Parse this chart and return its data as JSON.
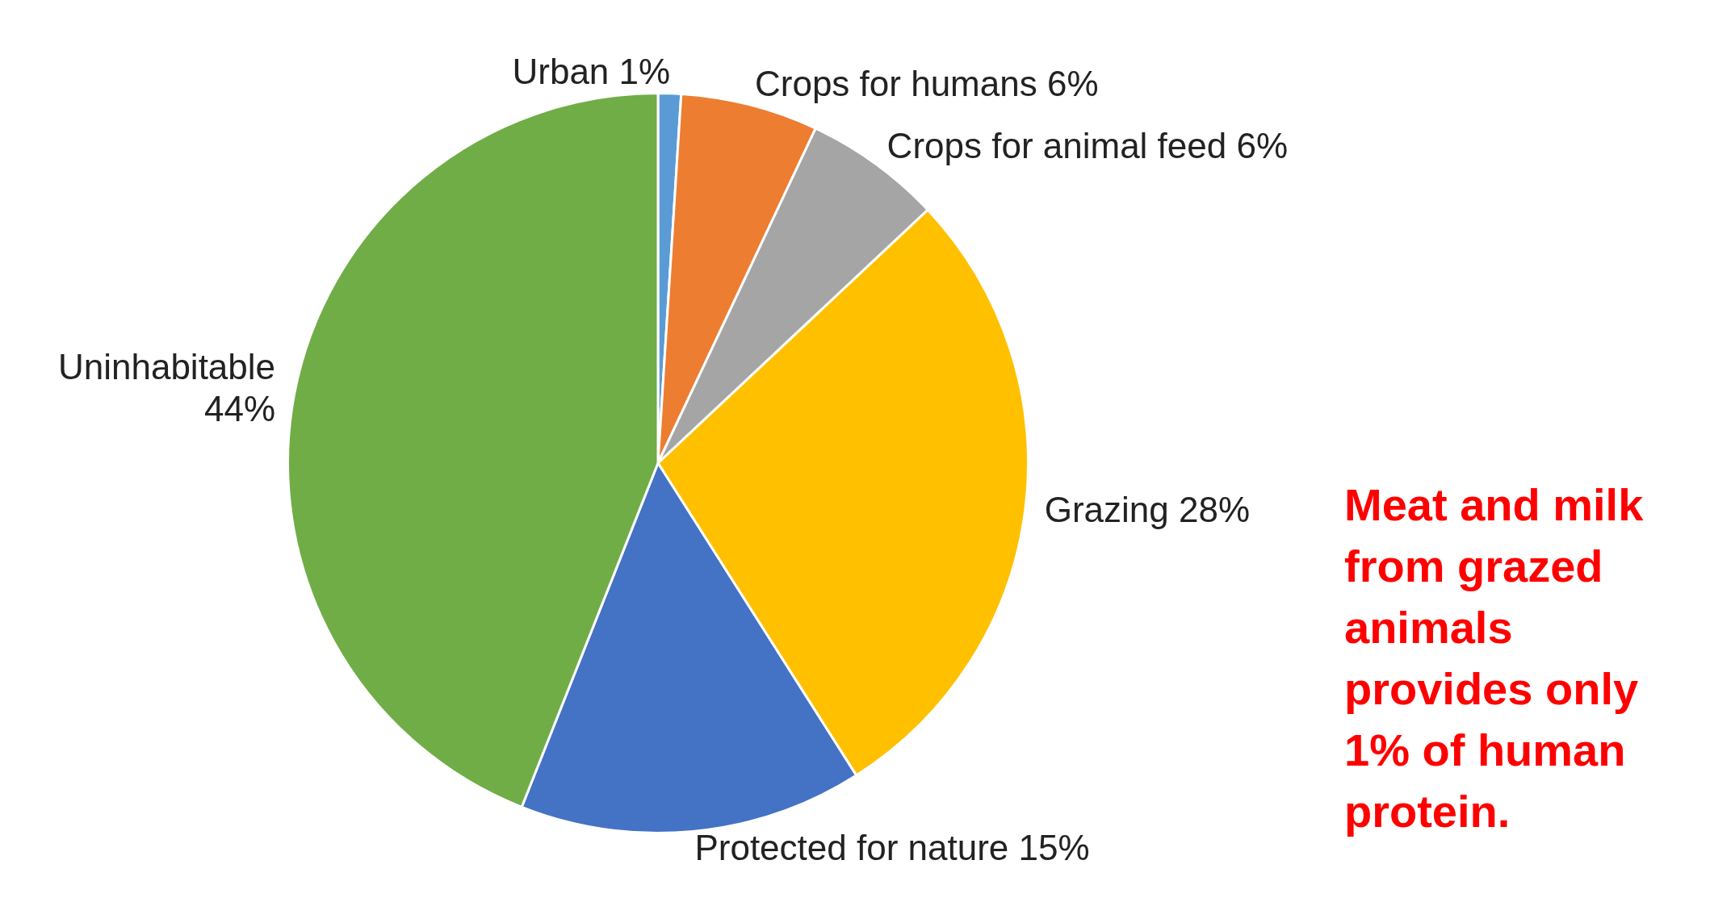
{
  "chart_data": {
    "type": "pie",
    "categories": [
      "Urban",
      "Crops for humans",
      "Crops for animal feed",
      "Grazing",
      "Protected for nature",
      "Uninhabitable"
    ],
    "values": [
      1,
      6,
      6,
      28,
      15,
      44
    ],
    "value_labels": [
      "1%",
      "6%",
      "6%",
      "28%",
      "15%",
      "44%"
    ],
    "colors": [
      "#5b9bd5",
      "#ed7d31",
      "#a5a5a5",
      "#ffc000",
      "#4472c4",
      "#70ad47"
    ],
    "legend": false,
    "annotations": [
      "Meat and milk from grazed animals provides only 1% of human protein."
    ]
  }
}
